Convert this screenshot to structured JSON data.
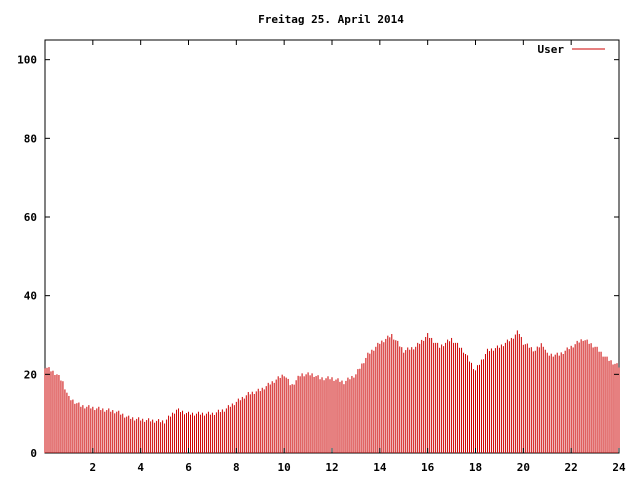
{
  "chart_data": {
    "type": "bar",
    "title": "Freitag 25. April 2014",
    "xlabel": "",
    "ylabel": "",
    "xlim": [
      0,
      24
    ],
    "ylim": [
      0,
      105
    ],
    "x_ticks": [
      {
        "value": 2,
        "label": "2"
      },
      {
        "value": 4,
        "label": "4"
      },
      {
        "value": 6,
        "label": "6"
      },
      {
        "value": 8,
        "label": "8"
      },
      {
        "value": 10,
        "label": "10"
      },
      {
        "value": 12,
        "label": "12"
      },
      {
        "value": 14,
        "label": "14"
      },
      {
        "value": 16,
        "label": "16"
      },
      {
        "value": 18,
        "label": "18"
      },
      {
        "value": 20,
        "label": "20"
      },
      {
        "value": 22,
        "label": "22"
      },
      {
        "value": 24,
        "label": "24"
      }
    ],
    "y_ticks": [
      {
        "value": 0,
        "label": "0"
      },
      {
        "value": 20,
        "label": "20"
      },
      {
        "value": 40,
        "label": "40"
      },
      {
        "value": 60,
        "label": "60"
      },
      {
        "value": 80,
        "label": "80"
      },
      {
        "value": 100,
        "label": "100"
      }
    ],
    "grid": false,
    "legend_position": "top-right",
    "series": [
      {
        "name": "User",
        "color": "#cc0000",
        "keyframes": [
          [
            0.0,
            22
          ],
          [
            0.25,
            21
          ],
          [
            0.5,
            20
          ],
          [
            0.75,
            18
          ],
          [
            1.0,
            14
          ],
          [
            1.25,
            13
          ],
          [
            1.5,
            12
          ],
          [
            2.0,
            11.5
          ],
          [
            2.5,
            11
          ],
          [
            3.0,
            10.5
          ],
          [
            3.5,
            9
          ],
          [
            4.0,
            8.5
          ],
          [
            5.0,
            8
          ],
          [
            5.5,
            11
          ],
          [
            6.0,
            10
          ],
          [
            7.0,
            10
          ],
          [
            7.5,
            11
          ],
          [
            8.0,
            13
          ],
          [
            8.5,
            15
          ],
          [
            9.0,
            16
          ],
          [
            9.5,
            18
          ],
          [
            10.0,
            20
          ],
          [
            10.3,
            17
          ],
          [
            10.7,
            20
          ],
          [
            11.2,
            20
          ],
          [
            11.5,
            19
          ],
          [
            12.0,
            19
          ],
          [
            12.5,
            18
          ],
          [
            13.0,
            20
          ],
          [
            13.5,
            25
          ],
          [
            14.0,
            28
          ],
          [
            14.5,
            30
          ],
          [
            15.0,
            26
          ],
          [
            15.5,
            27
          ],
          [
            16.0,
            30
          ],
          [
            16.5,
            27
          ],
          [
            17.0,
            29
          ],
          [
            17.5,
            26
          ],
          [
            18.0,
            21
          ],
          [
            18.5,
            26
          ],
          [
            19.0,
            27
          ],
          [
            19.5,
            29
          ],
          [
            19.8,
            31
          ],
          [
            20.0,
            28
          ],
          [
            20.5,
            26
          ],
          [
            20.8,
            28
          ],
          [
            21.0,
            25
          ],
          [
            21.5,
            25
          ],
          [
            22.0,
            27
          ],
          [
            22.5,
            29
          ],
          [
            23.0,
            27
          ],
          [
            23.5,
            24
          ],
          [
            24.0,
            22
          ]
        ]
      }
    ]
  }
}
